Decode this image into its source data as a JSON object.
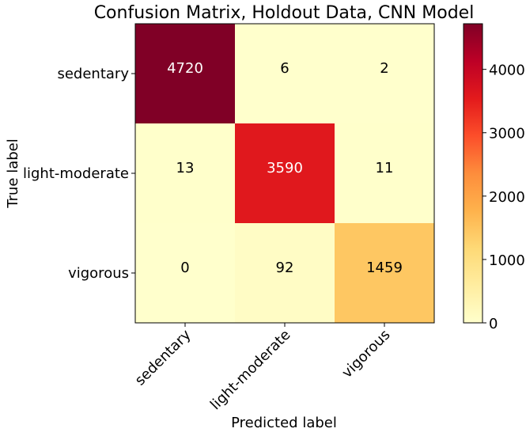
{
  "chart_data": {
    "type": "heatmap",
    "title": "Confusion Matrix, Holdout Data, CNN Model",
    "xlabel": "Predicted label",
    "ylabel": "True label",
    "x_categories": [
      "sedentary",
      "light-moderate",
      "vigorous"
    ],
    "y_categories": [
      "sedentary",
      "light-moderate",
      "vigorous"
    ],
    "values": [
      [
        4720,
        6,
        2
      ],
      [
        13,
        3590,
        11
      ],
      [
        0,
        92,
        1459
      ]
    ],
    "colormap": "YlOrRd",
    "color_range": [
      0,
      4720
    ],
    "colorbar_ticks": [
      "0",
      "1000",
      "2000",
      "3000",
      "4000"
    ],
    "x_tick_rotation": "45 degrees",
    "text_color_dark_cells": "#ffffff",
    "text_color_light_cells": "#000000"
  }
}
